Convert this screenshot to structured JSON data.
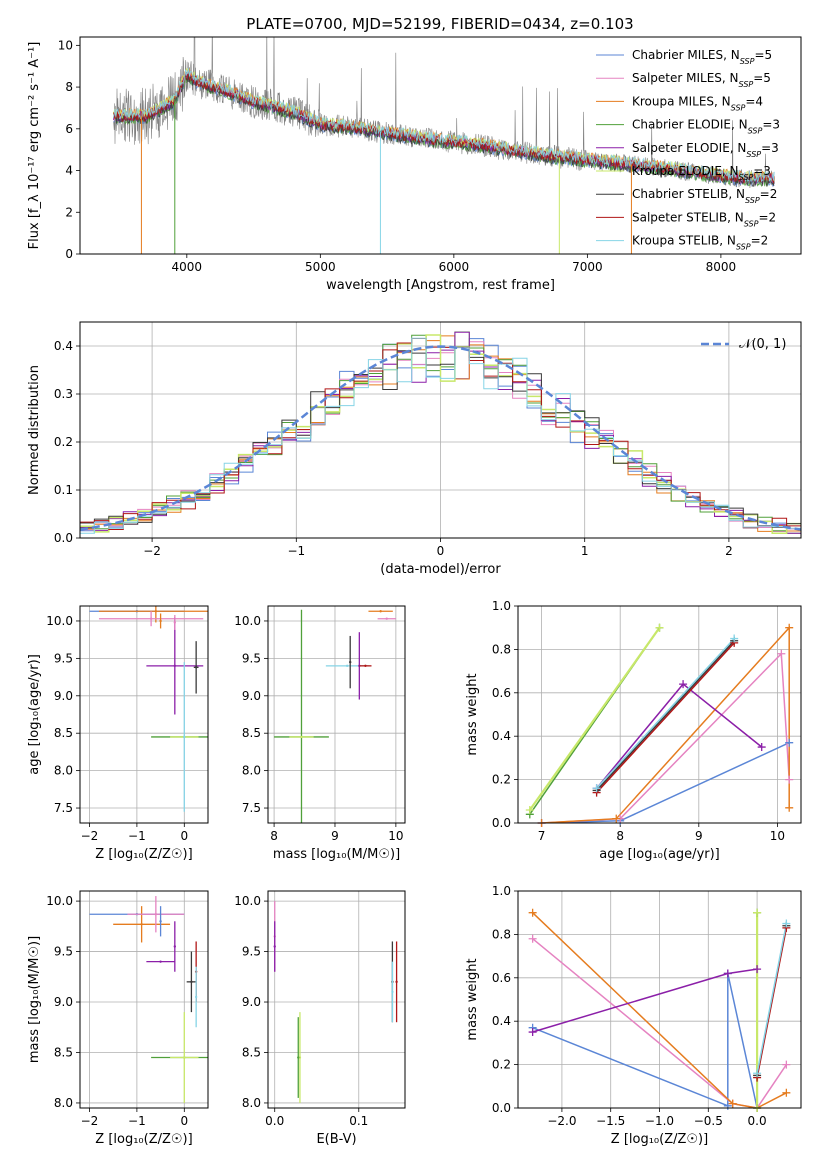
{
  "figure_title": "PLATE=0700, MJD=52199, FIBERID=0434, z=0.103",
  "colors": {
    "chabrier_miles": "#5b86d6",
    "salpeter_miles": "#e583c1",
    "kroupa_miles": "#e57c1f",
    "chabrier_elodie": "#50a03a",
    "salpeter_elodie": "#8b1fa8",
    "kroupa_elodie": "#c8e86a",
    "chabrier_stelib": "#3a3a3a",
    "salpeter_stelib": "#b01616",
    "kroupa_stelib": "#86d4e6",
    "data": "#7f7f7f",
    "gaussian": "#5b86d6"
  },
  "chart_data": [
    {
      "id": "spectrum",
      "type": "line",
      "xlabel": "wavelength [Angstrom, rest frame]",
      "ylabel": "Flux [f_λ 10⁻¹⁷ erg cm⁻² s⁻¹ A⁻¹]",
      "xlim": [
        3200,
        8600
      ],
      "ylim": [
        0,
        10.4
      ],
      "xticks": [
        4000,
        5000,
        6000,
        7000,
        8000
      ],
      "yticks": [
        0,
        2,
        4,
        6,
        8,
        10
      ],
      "legend_position": "top-right",
      "legend": [
        "Chabrier MILES, N_SSP=5",
        "Salpeter MILES, N_SSP=5",
        "Kroupa MILES, N_SSP=4",
        "Chabrier ELODIE, N_SSP=3",
        "Salpeter ELODIE, N_SSP=3",
        "Kroupa ELODIE, N_SSP=3",
        "Chabrier STELIB, N_SSP=2",
        "Salpeter STELIB, N_SSP=2",
        "Kroupa STELIB, N_SSP=2"
      ],
      "continuum": {
        "x": [
          3450,
          3700,
          3900,
          4000,
          4100,
          4300,
          4500,
          4800,
          5000,
          5200,
          5500,
          5800,
          6100,
          6400,
          6700,
          7000,
          7300,
          7600,
          7900,
          8200,
          8400
        ],
        "y": [
          6.6,
          6.6,
          7.3,
          8.6,
          8.2,
          7.8,
          7.3,
          6.8,
          6.2,
          6.1,
          5.8,
          5.5,
          5.3,
          5.0,
          4.7,
          4.5,
          4.3,
          4.1,
          3.8,
          3.6,
          3.6
        ]
      }
    },
    {
      "id": "residuals",
      "type": "line",
      "xlabel": "(data-model)/error",
      "ylabel": "Normed distribution",
      "xlim": [
        -2.5,
        2.5
      ],
      "ylim": [
        0,
        0.45
      ],
      "xticks": [
        -2,
        -1,
        0,
        1,
        2
      ],
      "yticks": [
        0.0,
        0.1,
        0.2,
        0.3,
        0.4
      ],
      "legend_position": "top-right",
      "gaussian_label": "𝒩(0, 1)",
      "gaussian": {
        "mean": 0,
        "sigma": 1
      }
    },
    {
      "id": "age_vs_Z",
      "type": "scatter",
      "xlabel": "Z [log₁₀(Z/Z☉)]",
      "ylabel": "age  [log₁₀(age/yr)]",
      "xlim": [
        -2.2,
        0.5
      ],
      "ylim": [
        7.3,
        10.2
      ],
      "xticks": [
        -2,
        -1,
        0
      ],
      "yticks": [
        7.5,
        8.0,
        8.5,
        9.0,
        9.5,
        10.0
      ],
      "points": [
        {
          "model": "chabrier_miles",
          "x": -1.0,
          "y": 10.13,
          "xerr": 1.0,
          "yerr": 0.0
        },
        {
          "model": "kroupa_miles",
          "x": -0.6,
          "y": 10.13,
          "xerr": 1.2,
          "yerr": 0.15
        },
        {
          "model": "salpeter_miles",
          "x": -0.7,
          "y": 10.03,
          "xerr": 1.1,
          "yerr": 0.1
        },
        {
          "model": "kroupa_miles",
          "x": -0.5,
          "y": 10.0,
          "xerr": 0.0,
          "yerr": 0.1
        },
        {
          "model": "salpeter_elodie",
          "x": -0.2,
          "y": 9.4,
          "xerr": 0.6,
          "yerr": 0.65
        },
        {
          "model": "chabrier_stelib",
          "x": 0.25,
          "y": 9.38,
          "xerr": 0.05,
          "yerr": 0.35
        },
        {
          "model": "chabrier_elodie",
          "x": 0.0,
          "y": 8.45,
          "xerr": 0.7,
          "yerr": 0.0
        },
        {
          "model": "kroupa_elodie",
          "x": 0.0,
          "y": 8.45,
          "xerr": 0.3,
          "yerr": 0.0
        },
        {
          "model": "kroupa_stelib",
          "x": 0.0,
          "y": 8.45,
          "xerr": 0.0,
          "yerr": 1.0
        },
        {
          "model": "salpeter_miles",
          "x": -0.2,
          "y": 9.98,
          "xerr": 0.0,
          "yerr": 0.1
        }
      ]
    },
    {
      "id": "age_vs_mass",
      "type": "scatter",
      "xlabel": "mass [log₁₀(M/M☉)]",
      "ylabel": "",
      "xlim": [
        7.9,
        10.15
      ],
      "ylim": [
        7.3,
        10.2
      ],
      "xticks": [
        8,
        9,
        10
      ],
      "yticks": [
        7.5,
        8.0,
        8.5,
        9.0,
        9.5,
        10.0
      ],
      "points": [
        {
          "model": "chabrier_elodie",
          "x": 8.45,
          "y": 8.45,
          "xerr": 0.45,
          "yerr": 1.7
        },
        {
          "model": "kroupa_elodie",
          "x": 8.45,
          "y": 8.45,
          "xerr": 0.2,
          "yerr": 0.0
        },
        {
          "model": "kroupa_miles",
          "x": 9.75,
          "y": 10.13,
          "xerr": 0.2,
          "yerr": 0.0
        },
        {
          "model": "salpeter_miles",
          "x": 9.85,
          "y": 10.03,
          "xerr": 0.15,
          "yerr": 0.0
        },
        {
          "model": "kroupa_stelib",
          "x": 9.2,
          "y": 9.4,
          "xerr": 0.35,
          "yerr": 0.0
        },
        {
          "model": "chabrier_stelib",
          "x": 9.25,
          "y": 9.45,
          "xerr": 0.0,
          "yerr": 0.35
        },
        {
          "model": "salpeter_elodie",
          "x": 9.4,
          "y": 9.4,
          "xerr": 0.0,
          "yerr": 0.45
        },
        {
          "model": "salpeter_stelib",
          "x": 9.5,
          "y": 9.4,
          "xerr": 0.1,
          "yerr": 0.0
        }
      ]
    },
    {
      "id": "weight_vs_age",
      "type": "line",
      "xlabel": "age  [log₁₀(age/yr)]",
      "ylabel": "mass weight",
      "xlim": [
        6.7,
        10.3
      ],
      "ylim": [
        0,
        1.0
      ],
      "xticks": [
        7,
        8,
        9,
        10
      ],
      "yticks": [
        0.0,
        0.2,
        0.4,
        0.6,
        0.8,
        1.0
      ],
      "series": [
        {
          "model": "chabrier_miles",
          "x": [
            7.0,
            8.0,
            10.15
          ],
          "y": [
            0.0,
            0.01,
            0.37
          ]
        },
        {
          "model": "salpeter_miles",
          "x": [
            7.0,
            8.0,
            10.05,
            10.15
          ],
          "y": [
            0.0,
            0.02,
            0.78,
            0.2
          ]
        },
        {
          "model": "kroupa_miles",
          "x": [
            7.0,
            7.95,
            10.15,
            10.15
          ],
          "y": [
            0.0,
            0.02,
            0.9,
            0.07
          ]
        },
        {
          "model": "chabrier_elodie",
          "x": [
            6.85,
            8.5
          ],
          "y": [
            0.04,
            0.9
          ]
        },
        {
          "model": "salpeter_elodie",
          "x": [
            7.7,
            8.8,
            9.8
          ],
          "y": [
            0.16,
            0.64,
            0.35
          ]
        },
        {
          "model": "kroupa_elodie",
          "x": [
            6.85,
            8.5
          ],
          "y": [
            0.06,
            0.9
          ]
        },
        {
          "model": "chabrier_stelib",
          "x": [
            7.7,
            9.45
          ],
          "y": [
            0.15,
            0.84
          ]
        },
        {
          "model": "salpeter_stelib",
          "x": [
            7.7,
            9.45
          ],
          "y": [
            0.14,
            0.83
          ]
        },
        {
          "model": "kroupa_stelib",
          "x": [
            7.7,
            9.45
          ],
          "y": [
            0.16,
            0.85
          ]
        }
      ]
    },
    {
      "id": "mass_vs_Z",
      "type": "scatter",
      "xlabel": "Z [log₁₀(Z/Z☉)]",
      "ylabel": "mass [log₁₀(M/M☉)]",
      "xlim": [
        -2.2,
        0.5
      ],
      "ylim": [
        7.95,
        10.1
      ],
      "xticks": [
        -2,
        -1,
        0
      ],
      "yticks": [
        8.0,
        8.5,
        9.0,
        9.5,
        10.0
      ],
      "points": [
        {
          "model": "chabrier_miles",
          "x": -1.0,
          "y": 9.87,
          "xerr": 1.0,
          "yerr": 0.0
        },
        {
          "model": "kroupa_miles",
          "x": -0.9,
          "y": 9.77,
          "xerr": 0.6,
          "yerr": 0.18
        },
        {
          "model": "salpeter_miles",
          "x": -0.6,
          "y": 9.87,
          "xerr": 0.6,
          "yerr": 0.18
        },
        {
          "model": "chabrier_miles",
          "x": -0.5,
          "y": 9.8,
          "xerr": 0.0,
          "yerr": 0.15
        },
        {
          "model": "salpeter_elodie",
          "x": -0.5,
          "y": 9.4,
          "xerr": 0.3,
          "yerr": 0.0
        },
        {
          "model": "salpeter_elodie",
          "x": -0.2,
          "y": 9.55,
          "xerr": 0.0,
          "yerr": 0.25
        },
        {
          "model": "chabrier_stelib",
          "x": 0.15,
          "y": 9.2,
          "xerr": 0.1,
          "yerr": 0.3
        },
        {
          "model": "salpeter_stelib",
          "x": 0.25,
          "y": 9.3,
          "xerr": 0.0,
          "yerr": 0.3
        },
        {
          "model": "kroupa_stelib",
          "x": 0.25,
          "y": 9.05,
          "xerr": 0.0,
          "yerr": 0.3
        },
        {
          "model": "chabrier_elodie",
          "x": 0.0,
          "y": 8.45,
          "xerr": 0.7,
          "yerr": 0.0
        },
        {
          "model": "kroupa_elodie",
          "x": 0.0,
          "y": 8.45,
          "xerr": 0.3,
          "yerr": 0.45
        }
      ]
    },
    {
      "id": "mass_vs_ebv",
      "type": "scatter",
      "xlabel": "E(B-V)",
      "ylabel": "",
      "xlim": [
        -0.008,
        0.155
      ],
      "ylim": [
        7.95,
        10.1
      ],
      "xticks": [
        0.0,
        0.1
      ],
      "yticks": [
        8.0,
        8.5,
        9.0,
        9.5,
        10.0
      ],
      "points": [
        {
          "model": "salpeter_miles",
          "x": 0.0,
          "y": 9.65,
          "xerr": 0.0,
          "yerr": 0.35
        },
        {
          "model": "salpeter_elodie",
          "x": 0.0,
          "y": 9.55,
          "xerr": 0.0,
          "yerr": 0.25
        },
        {
          "model": "kroupa_elodie",
          "x": 0.03,
          "y": 8.45,
          "xerr": 0.0,
          "yerr": 0.45
        },
        {
          "model": "chabrier_elodie",
          "x": 0.028,
          "y": 8.45,
          "xerr": 0.0,
          "yerr": 0.4
        },
        {
          "model": "chabrier_stelib",
          "x": 0.14,
          "y": 9.2,
          "xerr": 0.0,
          "yerr": 0.4
        },
        {
          "model": "salpeter_stelib",
          "x": 0.145,
          "y": 9.2,
          "xerr": 0.0,
          "yerr": 0.4
        },
        {
          "model": "kroupa_stelib",
          "x": 0.14,
          "y": 9.1,
          "xerr": 0.0,
          "yerr": 0.3
        }
      ]
    },
    {
      "id": "weight_vs_Z",
      "type": "line",
      "xlabel": "Z [log₁₀(Z/Z☉)]",
      "ylabel": "mass weight",
      "xlim": [
        -2.45,
        0.45
      ],
      "ylim": [
        0,
        1.0
      ],
      "xticks": [
        -2.0,
        -1.5,
        -1.0,
        -0.5,
        0.0
      ],
      "yticks": [
        0.0,
        0.2,
        0.4,
        0.6,
        0.8,
        1.0
      ],
      "series": [
        {
          "model": "chabrier_miles",
          "x": [
            -2.3,
            -0.3,
            -0.3,
            0.0
          ],
          "y": [
            0.37,
            0.01,
            0.62,
            0.0
          ]
        },
        {
          "model": "salpeter_miles",
          "x": [
            -2.3,
            -0.25,
            0.0,
            0.3
          ],
          "y": [
            0.78,
            0.02,
            0.0,
            0.2
          ]
        },
        {
          "model": "kroupa_miles",
          "x": [
            -2.3,
            -0.25,
            0.0,
            0.3
          ],
          "y": [
            0.9,
            0.02,
            0.0,
            0.07
          ]
        },
        {
          "model": "salpeter_elodie",
          "x": [
            -2.3,
            -0.3,
            0.0
          ],
          "y": [
            0.35,
            0.62,
            0.64
          ]
        },
        {
          "model": "chabrier_elodie",
          "x": [
            0.0,
            0.0
          ],
          "y": [
            0.0,
            0.9
          ]
        },
        {
          "model": "kroupa_elodie",
          "x": [
            0.0,
            0.0
          ],
          "y": [
            0.0,
            0.9
          ]
        },
        {
          "model": "chabrier_stelib",
          "x": [
            0.0,
            0.3
          ],
          "y": [
            0.15,
            0.84
          ]
        },
        {
          "model": "salpeter_stelib",
          "x": [
            0.0,
            0.3
          ],
          "y": [
            0.14,
            0.83
          ]
        },
        {
          "model": "kroupa_stelib",
          "x": [
            0.0,
            0.3
          ],
          "y": [
            0.16,
            0.85
          ]
        }
      ]
    }
  ]
}
